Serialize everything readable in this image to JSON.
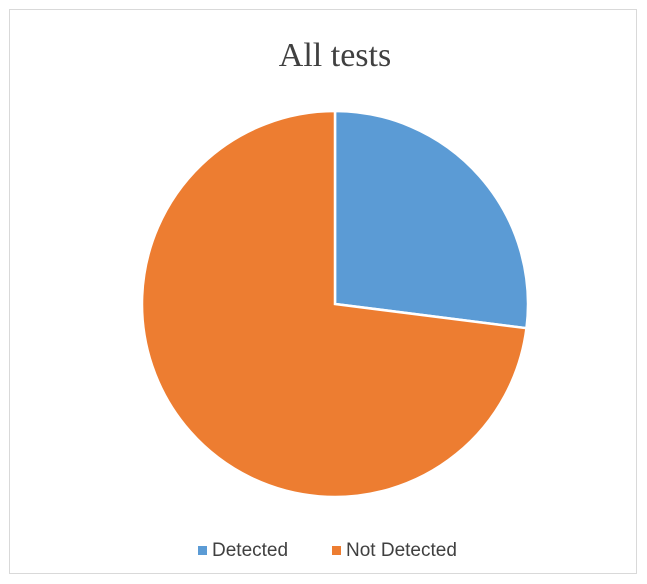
{
  "chart_data": {
    "type": "pie",
    "title": "All tests",
    "categories": [
      "Detected",
      "Not Detected"
    ],
    "values": [
      27,
      73
    ],
    "colors": [
      "#5b9bd5",
      "#ed7d31"
    ],
    "legend": "bottom"
  }
}
